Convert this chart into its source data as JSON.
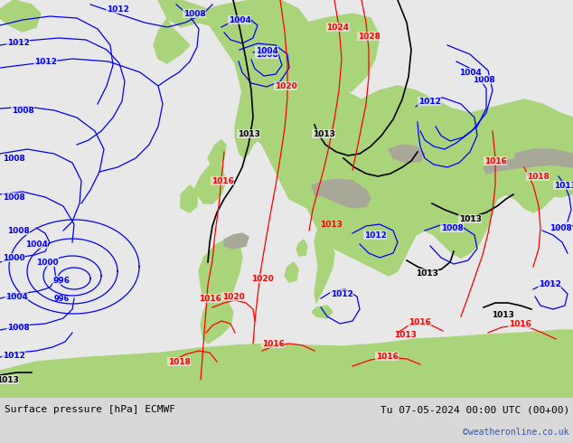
{
  "title_left": "Surface pressure [hPa] ECMWF",
  "title_right": "Tu 07-05-2024 00:00 UTC (00+00)",
  "watermark": "©weatheronline.co.uk",
  "ocean_color": "#e8e8e8",
  "land_color": "#aad47a",
  "land_color2": "#b8dc8a",
  "gray_color": "#a8a898",
  "footer_bg": "#d8d8d8",
  "figsize": [
    6.34,
    4.9
  ],
  "dpi": 100
}
